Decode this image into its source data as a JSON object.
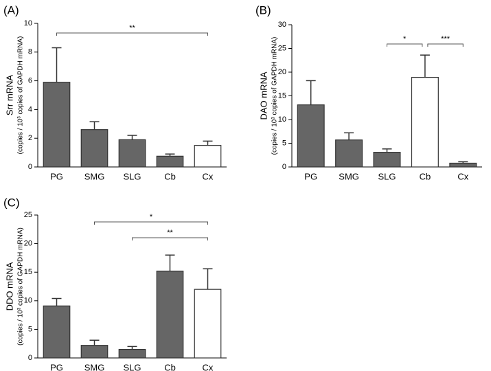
{
  "chart_data": [
    {
      "type": "bar",
      "panel": "(A)",
      "ylabel": "Srr mRNA",
      "ylabel_sub": "(copies / 10³ copies of GAPDH mRNA)",
      "categories": [
        "PG",
        "SMG",
        "SLG",
        "Cb",
        "Cx"
      ],
      "values": [
        5.9,
        2.6,
        1.9,
        0.75,
        1.5
      ],
      "errors": [
        2.4,
        0.55,
        0.3,
        0.15,
        0.3
      ],
      "colors": [
        "#666666",
        "#666666",
        "#666666",
        "#666666",
        "#ffffff"
      ],
      "ylim": [
        0,
        10
      ],
      "yticks": [
        0,
        2,
        4,
        6,
        8,
        10
      ],
      "annotations": [
        {
          "from": 0,
          "to": 4,
          "label": "**"
        }
      ]
    },
    {
      "type": "bar",
      "panel": "(B)",
      "ylabel": "DAO mRNA",
      "ylabel_sub": "(copies / 10³ copies of GAPDH mRNA)",
      "categories": [
        "PG",
        "SMG",
        "SLG",
        "Cb",
        "Cx"
      ],
      "values": [
        13.1,
        5.7,
        3.1,
        18.9,
        0.8
      ],
      "errors": [
        5.1,
        1.5,
        0.7,
        4.7,
        0.3
      ],
      "colors": [
        "#666666",
        "#666666",
        "#666666",
        "#ffffff",
        "#666666"
      ],
      "ylim": [
        0,
        30
      ],
      "yticks": [
        0,
        5,
        10,
        15,
        20,
        25,
        30
      ],
      "annotations": [
        {
          "from": 2,
          "to": 3,
          "label": "*"
        },
        {
          "from": 3,
          "to": 4,
          "label": "***"
        }
      ]
    },
    {
      "type": "bar",
      "panel": "(C)",
      "ylabel": "DDO mRNA",
      "ylabel_sub": "(copies / 10³ copies of GAPDH mRNA)",
      "categories": [
        "PG",
        "SMG",
        "SLG",
        "Cb",
        "Cx"
      ],
      "values": [
        9.1,
        2.2,
        1.5,
        15.2,
        12.0
      ],
      "errors": [
        1.3,
        0.9,
        0.5,
        2.8,
        3.6
      ],
      "colors": [
        "#666666",
        "#666666",
        "#666666",
        "#666666",
        "#ffffff"
      ],
      "ylim": [
        0,
        25
      ],
      "yticks": [
        0,
        5,
        10,
        15,
        20,
        25
      ],
      "annotations": [
        {
          "from": 1,
          "to": 4,
          "label": "*"
        },
        {
          "from": 2,
          "to": 4,
          "label": "**"
        }
      ]
    }
  ]
}
